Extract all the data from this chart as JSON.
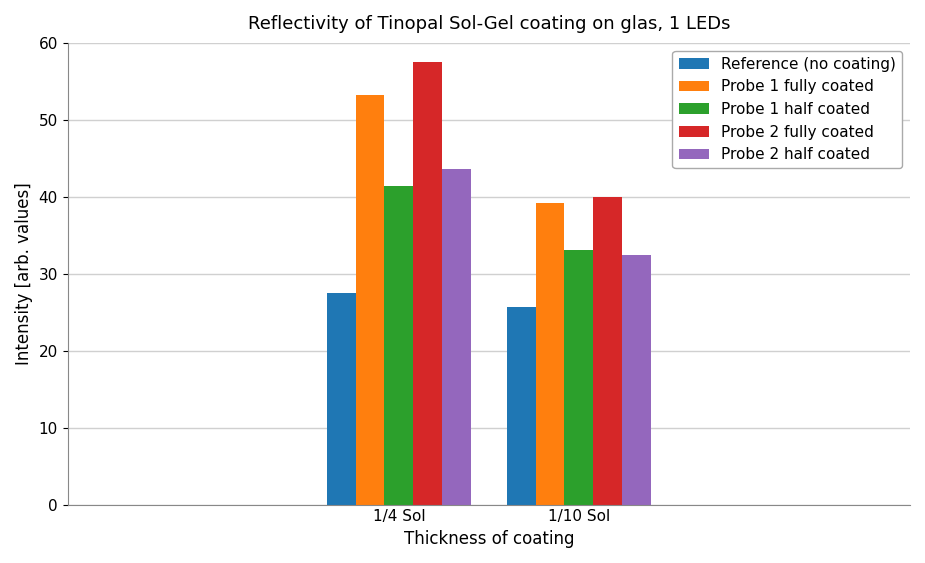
{
  "title": "Reflectivity of Tinopal Sol-Gel coating on glas, 1 LEDs",
  "xlabel": "Thickness of coating",
  "ylabel": "Intensity [arb. values]",
  "categories": [
    "1/4 Sol",
    "1/10 Sol"
  ],
  "series": [
    {
      "label": "Reference (no coating)",
      "color": "#1f77b4",
      "values": [
        27.5,
        25.7
      ]
    },
    {
      "label": "Probe 1 fully coated",
      "color": "#ff7f0e",
      "values": [
        53.2,
        39.2
      ]
    },
    {
      "label": "Probe 1 half coated",
      "color": "#2ca02c",
      "values": [
        41.4,
        33.1
      ]
    },
    {
      "label": "Probe 2 fully coated",
      "color": "#d62728",
      "values": [
        57.5,
        40.0
      ]
    },
    {
      "label": "Probe 2 half coated",
      "color": "#9467bd",
      "values": [
        43.6,
        32.4
      ]
    }
  ],
  "ylim": [
    0,
    60
  ],
  "yticks": [
    0,
    10,
    20,
    30,
    40,
    50,
    60
  ],
  "bar_width": 0.16,
  "background_color": "#ffffff",
  "grid_color": "#d0d0d0",
  "title_fontsize": 13,
  "axis_label_fontsize": 12,
  "tick_fontsize": 11,
  "legend_fontsize": 11
}
